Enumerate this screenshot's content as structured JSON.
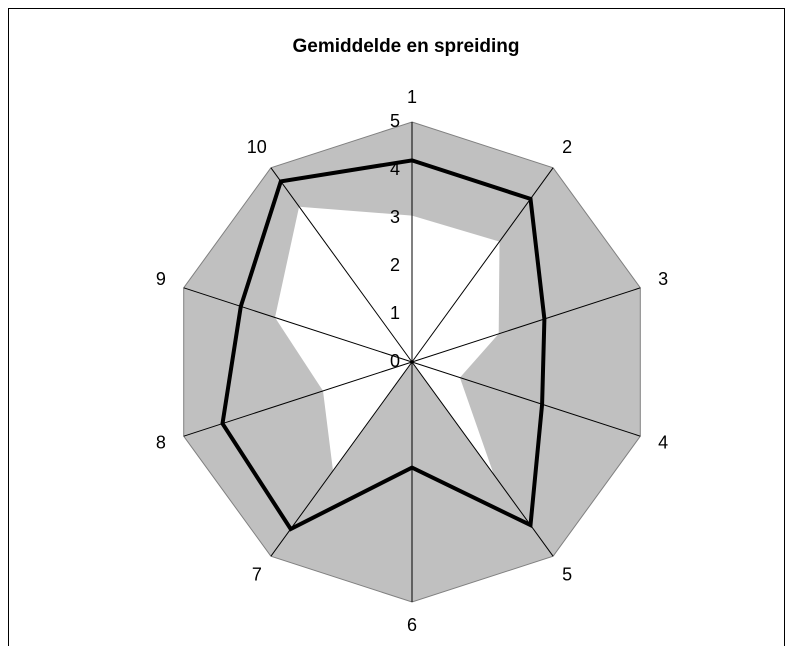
{
  "chart_data": {
    "type": "radar",
    "title": "Gemiddelde en spreiding",
    "categories": [
      "1",
      "2",
      "3",
      "4",
      "5",
      "6",
      "7",
      "8",
      "9",
      "10"
    ],
    "rlim": [
      0,
      5
    ],
    "rticks": [
      0,
      1,
      2,
      3,
      4,
      5
    ],
    "series": [
      {
        "color": "#c0c0c0",
        "fill": true,
        "values": [
          5,
          5,
          5,
          5,
          5,
          5,
          5,
          5,
          5,
          5
        ]
      },
      {
        "color": "#ffffff",
        "fill": true,
        "values": [
          3.05,
          3.1,
          1.9,
          1.05,
          2.9,
          0,
          2.8,
          1.95,
          3.0,
          4.0
        ]
      },
      {
        "color": "#000000",
        "fill": false,
        "values": [
          4.2,
          4.2,
          2.9,
          2.85,
          4.2,
          2.2,
          4.3,
          4.15,
          3.75,
          4.65
        ]
      }
    ]
  }
}
